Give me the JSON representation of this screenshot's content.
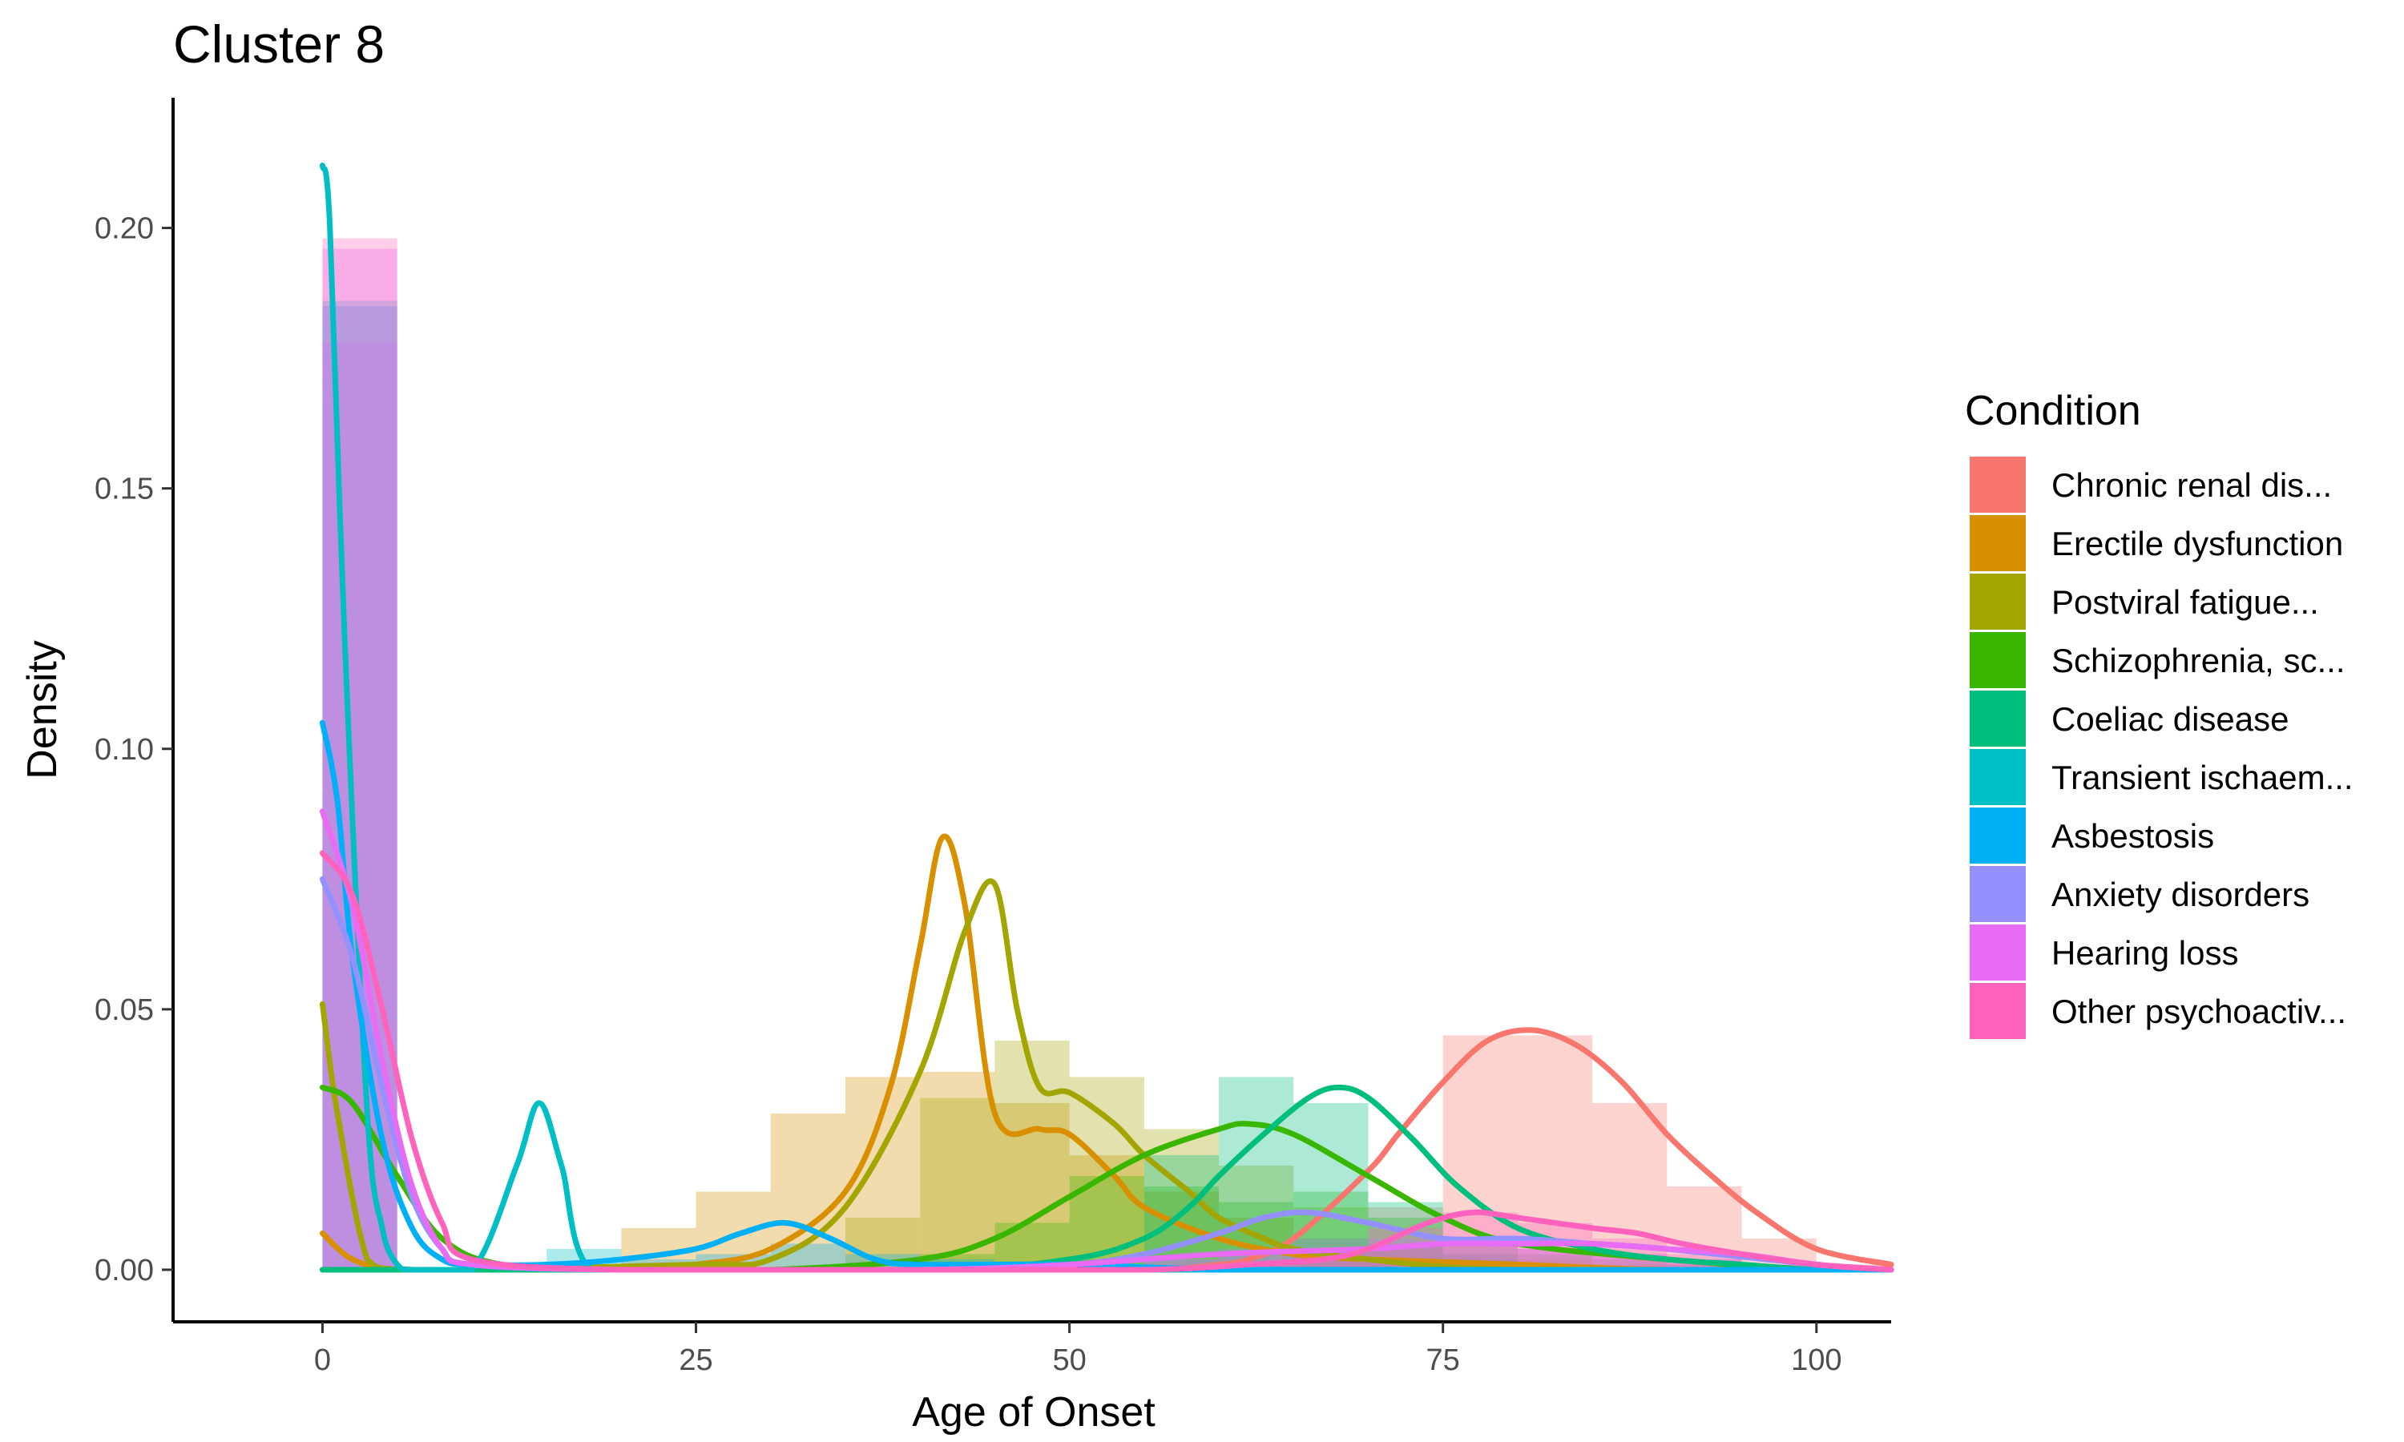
{
  "chart_data": {
    "type": "area",
    "subtype": "histogram-with-density",
    "title": "Cluster 8",
    "xlabel": "Age of Onset",
    "ylabel": "Density",
    "xlim": [
      -10,
      105
    ],
    "ylim": [
      -0.01,
      0.225
    ],
    "x_ticks": [
      0,
      25,
      50,
      75,
      100
    ],
    "y_ticks": [
      0.0,
      0.05,
      0.1,
      0.15,
      0.2
    ],
    "x_tick_labels": [
      "0",
      "25",
      "50",
      "75",
      "100"
    ],
    "y_tick_labels": [
      "0.00",
      "0.05",
      "0.10",
      "0.15",
      "0.20"
    ],
    "grid": false,
    "legend_title": "Condition",
    "legend_position": "right",
    "bin_width": 5,
    "histogram_bin_starts": [
      0,
      5,
      10,
      15,
      20,
      25,
      30,
      35,
      40,
      45,
      50,
      55,
      60,
      65,
      70,
      75,
      80,
      85,
      90,
      95,
      100
    ],
    "series": [
      {
        "name": "Chronic renal dis...",
        "color": "#F8766D",
        "histogram": [
          0.0,
          0.0,
          0.0,
          0.0,
          0.0,
          0.0,
          0.0,
          0.0,
          0.0,
          0.0,
          0.0,
          0.0,
          0.001,
          0.003,
          0.012,
          0.045,
          0.045,
          0.032,
          0.016,
          0.006,
          0.001
        ],
        "density_x": [
          0,
          5,
          10,
          20,
          40,
          55,
          60,
          62,
          65,
          70,
          72,
          75,
          78,
          81,
          84,
          87,
          90,
          93,
          96,
          100,
          105
        ],
        "density_y": [
          0.0,
          0.0,
          0.0,
          0.0,
          0.0,
          0.0,
          0.001,
          0.002,
          0.006,
          0.019,
          0.026,
          0.036,
          0.044,
          0.046,
          0.043,
          0.036,
          0.026,
          0.018,
          0.011,
          0.004,
          0.001
        ]
      },
      {
        "name": "Erectile dysfunction",
        "color": "#D89000",
        "histogram": [
          0.0,
          0.0,
          0.0,
          0.0,
          0.008,
          0.015,
          0.03,
          0.037,
          0.038,
          0.032,
          0.022,
          0.015,
          0.01,
          0.006,
          0.004,
          0.003,
          0.002,
          0.001,
          0.001,
          0.0,
          0.0
        ],
        "density_x": [
          0,
          2,
          5,
          10,
          20,
          25,
          30,
          35,
          38,
          40,
          41.5,
          43,
          45,
          48,
          50,
          53,
          55,
          60,
          65,
          70,
          80,
          90,
          105
        ],
        "density_y": [
          0.007,
          0.002,
          0.0,
          0.0,
          0.0,
          0.001,
          0.004,
          0.015,
          0.035,
          0.062,
          0.083,
          0.07,
          0.03,
          0.027,
          0.026,
          0.018,
          0.012,
          0.006,
          0.003,
          0.002,
          0.001,
          0.0,
          0.0
        ]
      },
      {
        "name": "Postviral fatigue...",
        "color": "#A3A500",
        "histogram": [
          0.0,
          0.0,
          0.0,
          0.0,
          0.0,
          0.0,
          0.0,
          0.01,
          0.033,
          0.044,
          0.037,
          0.027,
          0.02,
          0.012,
          0.005,
          0.002,
          0.001,
          0.0,
          0.0,
          0.0,
          0.0
        ],
        "density_x": [
          0,
          1,
          3,
          5,
          10,
          25,
          30,
          35,
          40,
          43,
          45,
          46.5,
          48,
          50,
          53,
          55,
          58,
          60,
          63,
          65,
          70,
          80,
          105
        ],
        "density_y": [
          0.051,
          0.03,
          0.002,
          0.0,
          0.0,
          0.001,
          0.002,
          0.012,
          0.038,
          0.065,
          0.074,
          0.05,
          0.035,
          0.034,
          0.028,
          0.022,
          0.015,
          0.01,
          0.006,
          0.004,
          0.002,
          0.0,
          0.0
        ]
      },
      {
        "name": "Schizophrenia, sc...",
        "color": "#39B600",
        "histogram": [
          0.0,
          0.0,
          0.0,
          0.0,
          0.0,
          0.0,
          0.0,
          0.0,
          0.003,
          0.009,
          0.018,
          0.016,
          0.013,
          0.015,
          0.01,
          0.005,
          0.003,
          0.002,
          0.001,
          0.0,
          0.0
        ],
        "density_x": [
          0,
          2,
          5,
          8,
          12,
          20,
          30,
          40,
          45,
          50,
          55,
          60,
          62,
          65,
          70,
          75,
          80,
          90,
          100,
          105
        ],
        "density_y": [
          0.035,
          0.032,
          0.018,
          0.006,
          0.001,
          0.0,
          0.0,
          0.002,
          0.006,
          0.014,
          0.022,
          0.027,
          0.028,
          0.026,
          0.018,
          0.01,
          0.005,
          0.002,
          0.0,
          0.0
        ]
      },
      {
        "name": "Coeliac disease",
        "color": "#00BF7D",
        "histogram": [
          0.0,
          0.0,
          0.0,
          0.0,
          0.0,
          0.0,
          0.0,
          0.0,
          0.0,
          0.0,
          0.002,
          0.022,
          0.037,
          0.032,
          0.013,
          0.003,
          0.001,
          0.0,
          0.0,
          0.0,
          0.0
        ],
        "density_x": [
          0,
          10,
          40,
          50,
          55,
          58,
          60,
          63,
          66,
          68,
          70,
          73,
          76,
          80,
          85,
          90,
          95,
          100,
          105
        ],
        "density_y": [
          0.0,
          0.0,
          0.0,
          0.002,
          0.006,
          0.012,
          0.018,
          0.026,
          0.033,
          0.035,
          0.033,
          0.025,
          0.016,
          0.008,
          0.004,
          0.002,
          0.001,
          0.0,
          0.0
        ]
      },
      {
        "name": "Transient ischaem...",
        "color": "#00BFC4",
        "histogram": [
          0.186,
          0.0,
          0.0,
          0.004,
          0.0,
          0.0,
          0.0,
          0.0,
          0.0,
          0.0,
          0.0,
          0.0,
          0.0,
          0.0,
          0.0,
          0.0,
          0.0,
          0.0,
          0.0,
          0.0,
          0.0
        ],
        "density_x": [
          0,
          0.5,
          1.5,
          3,
          4,
          5,
          6,
          10,
          13,
          14.5,
          16,
          18,
          25,
          40,
          60,
          80,
          100,
          105
        ],
        "density_y": [
          0.212,
          0.2,
          0.12,
          0.03,
          0.008,
          0.001,
          0.0,
          0.0,
          0.02,
          0.032,
          0.02,
          0.0,
          0.0,
          0.0,
          0.0,
          0.0,
          0.0,
          0.0
        ]
      },
      {
        "name": "Asbestosis",
        "color": "#00B0F6",
        "histogram": [
          0.185,
          0.0,
          0.0,
          0.001,
          0.002,
          0.003,
          0.005,
          0.003,
          0.002,
          0.001,
          0.001,
          0.001,
          0.0,
          0.0,
          0.0,
          0.0,
          0.0,
          0.0,
          0.0,
          0.0,
          0.0
        ],
        "density_x": [
          0,
          1,
          2,
          4,
          6,
          8,
          10,
          15,
          20,
          25,
          28,
          31,
          34,
          37,
          40,
          50,
          60,
          70,
          80,
          90,
          100,
          105
        ],
        "density_y": [
          0.105,
          0.09,
          0.06,
          0.025,
          0.008,
          0.002,
          0.001,
          0.001,
          0.002,
          0.004,
          0.007,
          0.009,
          0.006,
          0.002,
          0.001,
          0.001,
          0.0,
          0.0,
          0.0,
          0.0,
          0.0,
          0.0
        ]
      },
      {
        "name": "Anxiety disorders",
        "color": "#9590FF",
        "histogram": [
          0.178,
          0.0,
          0.0,
          0.0,
          0.0,
          0.0,
          0.0,
          0.0,
          0.0,
          0.0,
          0.001,
          0.002,
          0.004,
          0.006,
          0.006,
          0.005,
          0.004,
          0.003,
          0.002,
          0.001,
          0.0
        ],
        "density_x": [
          0,
          2,
          4,
          6,
          8,
          10,
          20,
          40,
          50,
          55,
          60,
          63,
          66,
          70,
          75,
          80,
          85,
          90,
          100,
          105
        ],
        "density_y": [
          0.075,
          0.06,
          0.035,
          0.014,
          0.004,
          0.001,
          0.0,
          0.0,
          0.001,
          0.003,
          0.007,
          0.01,
          0.011,
          0.009,
          0.006,
          0.006,
          0.005,
          0.004,
          0.001,
          0.0
        ]
      },
      {
        "name": "Hearing loss",
        "color": "#E76BF3",
        "histogram": [
          0.196,
          0.0,
          0.0,
          0.0,
          0.0,
          0.0,
          0.0,
          0.0,
          0.0,
          0.0,
          0.001,
          0.002,
          0.003,
          0.004,
          0.005,
          0.005,
          0.004,
          0.003,
          0.002,
          0.001,
          0.0
        ],
        "density_x": [
          0,
          2,
          4,
          6,
          8,
          10,
          20,
          40,
          50,
          60,
          70,
          75,
          80,
          85,
          90,
          95,
          100,
          105
        ],
        "density_y": [
          0.088,
          0.07,
          0.04,
          0.016,
          0.004,
          0.001,
          0.0,
          0.0,
          0.001,
          0.003,
          0.004,
          0.005,
          0.005,
          0.005,
          0.004,
          0.003,
          0.001,
          0.0
        ]
      },
      {
        "name": "Other psychoactiv...",
        "color": "#FF62BC",
        "histogram": [
          0.198,
          0.0,
          0.0,
          0.0,
          0.0,
          0.0,
          0.0,
          0.0,
          0.0,
          0.0,
          0.0,
          0.0,
          0.001,
          0.003,
          0.008,
          0.011,
          0.009,
          0.006,
          0.003,
          0.001,
          0.0
        ],
        "density_x": [
          0,
          2,
          4,
          6,
          8,
          10,
          20,
          40,
          55,
          62,
          67,
          70,
          74,
          77,
          80,
          85,
          88,
          91,
          95,
          100,
          105
        ],
        "density_y": [
          0.08,
          0.072,
          0.05,
          0.025,
          0.009,
          0.002,
          0.0,
          0.0,
          0.0,
          0.001,
          0.002,
          0.004,
          0.009,
          0.011,
          0.01,
          0.008,
          0.007,
          0.005,
          0.003,
          0.001,
          0.0
        ]
      }
    ]
  }
}
